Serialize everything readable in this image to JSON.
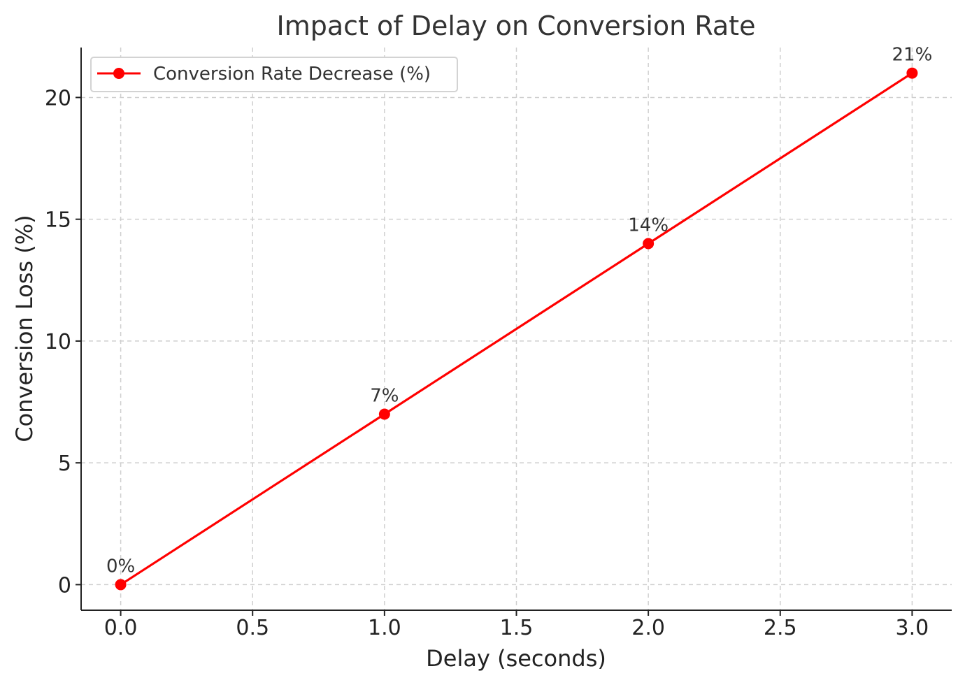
{
  "chart_data": {
    "type": "line",
    "title": "Impact of Delay on Conversion Rate",
    "xlabel": "Delay (seconds)",
    "ylabel": "Conversion Loss (%)",
    "x": [
      0,
      1,
      2,
      3
    ],
    "series": [
      {
        "name": "Conversion Rate Decrease (%)",
        "values": [
          0,
          7,
          14,
          21
        ],
        "labels": [
          "0%",
          "7%",
          "14%",
          "21%"
        ],
        "color": "#ff0000",
        "marker": "circle"
      }
    ],
    "xlim": [
      -0.15,
      3.15
    ],
    "ylim": [
      -1.05,
      22.05
    ],
    "xticks": [
      0.0,
      0.5,
      1.0,
      1.5,
      2.0,
      2.5,
      3.0
    ],
    "xtick_labels": [
      "0.0",
      "0.5",
      "1.0",
      "1.5",
      "2.0",
      "2.5",
      "3.0"
    ],
    "yticks": [
      0,
      5,
      10,
      15,
      20
    ],
    "ytick_labels": [
      "0",
      "5",
      "10",
      "15",
      "20"
    ],
    "grid": true,
    "legend_position": "top-left"
  }
}
